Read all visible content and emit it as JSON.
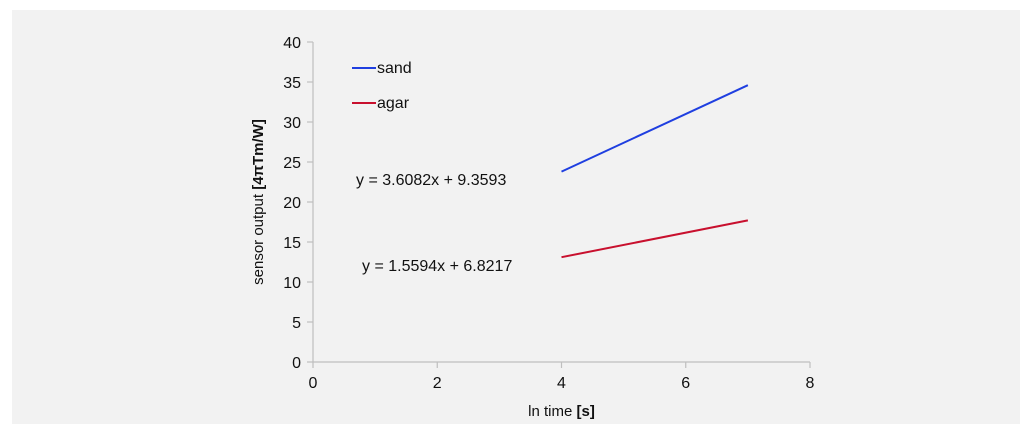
{
  "chart_data": {
    "type": "line",
    "title": "",
    "xlabel_text": "ln time ",
    "xlabel_unit": "[s]",
    "ylabel_text": "sensor output ",
    "ylabel_unit": "[4πTm/W]",
    "xlim": [
      0,
      8
    ],
    "ylim": [
      0,
      40
    ],
    "x_ticks": [
      "0",
      "2",
      "4",
      "6",
      "8"
    ],
    "y_ticks": [
      "0",
      "5",
      "10",
      "15",
      "20",
      "25",
      "30",
      "35",
      "40"
    ],
    "grid": false,
    "legend_position": "top-left",
    "series": [
      {
        "name": "sand",
        "color": "#1f3fe0",
        "x": [
          4.0,
          7.0
        ],
        "y": [
          23.8,
          34.6
        ],
        "equation": "y = 3.6082x + 9.3593"
      },
      {
        "name": "agar",
        "color": "#c8102e",
        "x": [
          4.0,
          7.0
        ],
        "y": [
          13.1,
          17.7
        ],
        "equation": "y = 1.5594x + 6.8217"
      }
    ]
  }
}
